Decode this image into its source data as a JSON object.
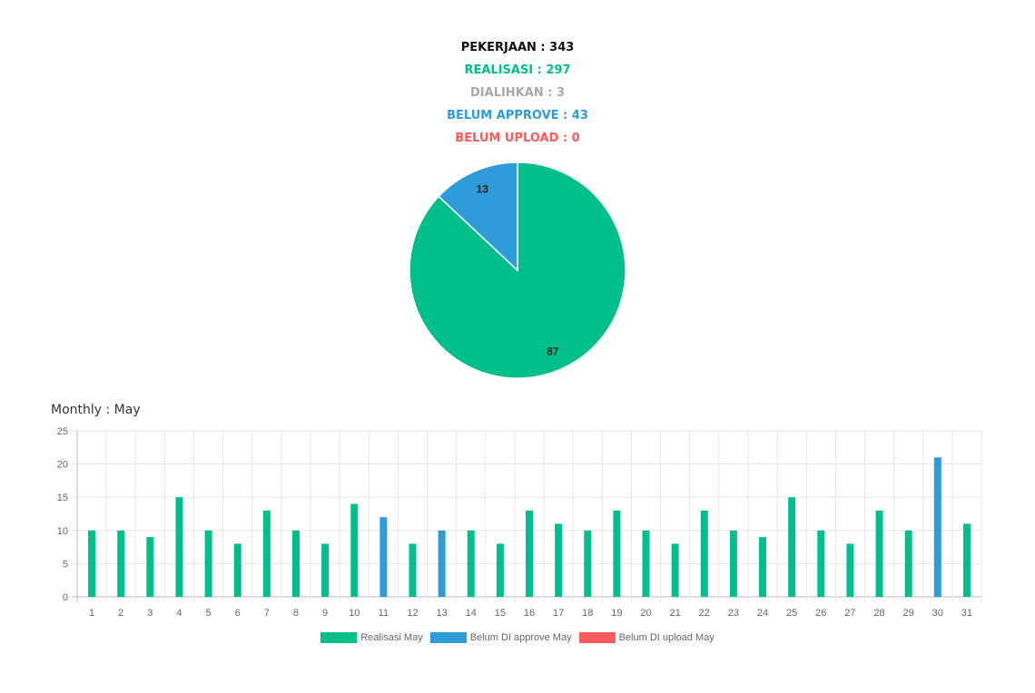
{
  "summary": {
    "pekerjaan": "PEKERJAAN : 343",
    "realisasi": "REALISASI : 297",
    "dialihkan": "DIALIHKAN : 3",
    "belum_approve": "BELUM APPROVE : 43",
    "belum_upload": "BELUM UPLOAD : 0"
  },
  "colors": {
    "black": "#111111",
    "green": "#00bf8a",
    "gray": "#a8a8a8",
    "blue": "#2f9cda",
    "red": "#ff5a5a"
  },
  "monthly_title": "Monthly : May",
  "chart_data": [
    {
      "type": "pie",
      "slices": [
        {
          "label": "87",
          "value": 87,
          "color": "#00bf8a"
        },
        {
          "label": "13",
          "value": 13,
          "color": "#2f9cda"
        }
      ]
    },
    {
      "type": "bar",
      "categories": [
        "1",
        "2",
        "3",
        "4",
        "5",
        "6",
        "7",
        "8",
        "9",
        "10",
        "11",
        "12",
        "13",
        "14",
        "15",
        "16",
        "17",
        "18",
        "19",
        "20",
        "21",
        "22",
        "23",
        "24",
        "25",
        "26",
        "27",
        "28",
        "29",
        "30",
        "31"
      ],
      "series": [
        {
          "name": "Realisasi May",
          "color": "#00bf8a",
          "values": [
            10,
            10,
            9,
            15,
            10,
            8,
            13,
            10,
            8,
            14,
            0,
            8,
            0,
            10,
            8,
            13,
            11,
            10,
            13,
            10,
            8,
            13,
            10,
            9,
            15,
            10,
            8,
            13,
            10,
            0,
            11
          ]
        },
        {
          "name": "Belum DI approve May",
          "color": "#2f9cda",
          "values": [
            0,
            0,
            0,
            0,
            0,
            0,
            0,
            0,
            0,
            0,
            12,
            0,
            10,
            0,
            0,
            0,
            0,
            0,
            0,
            0,
            0,
            0,
            0,
            0,
            0,
            0,
            0,
            0,
            0,
            21,
            0
          ]
        },
        {
          "name": "Belum DI upload May",
          "color": "#ff5a5a",
          "values": [
            0,
            0,
            0,
            0,
            0,
            0,
            0,
            0,
            0,
            0,
            0,
            0,
            0,
            0,
            0,
            0,
            0,
            0,
            0,
            0,
            0,
            0,
            0,
            0,
            0,
            0,
            0,
            0,
            0,
            0,
            0
          ]
        }
      ],
      "y_ticks": [
        "0",
        "5",
        "10",
        "15",
        "20",
        "25"
      ],
      "ylim": [
        0,
        25
      ],
      "grid": true,
      "legend_position": "bottom"
    }
  ]
}
